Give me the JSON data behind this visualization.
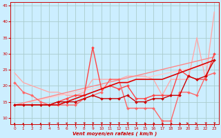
{
  "xlabel": "Vent moyen/en rafales ( km/h )",
  "background_color": "#cceeff",
  "grid_color": "#aacccc",
  "xlim": [
    -0.5,
    23.5
  ],
  "ylim": [
    8,
    46
  ],
  "yticks": [
    10,
    15,
    20,
    25,
    30,
    35,
    40,
    45
  ],
  "xticks": [
    0,
    1,
    2,
    3,
    4,
    5,
    6,
    7,
    8,
    9,
    10,
    11,
    12,
    13,
    14,
    15,
    16,
    17,
    18,
    19,
    20,
    21,
    22,
    23
  ],
  "lines": [
    {
      "x": [
        0,
        1,
        2,
        3,
        4,
        5,
        6,
        7,
        8,
        9,
        10,
        11,
        12,
        13,
        14,
        15,
        16,
        17,
        18,
        19,
        20,
        21,
        22,
        23
      ],
      "y": [
        24,
        21,
        20,
        19,
        18,
        18,
        17,
        17,
        18,
        22,
        22,
        22,
        22,
        23,
        23,
        23,
        22,
        17,
        22,
        22,
        22,
        35,
        22,
        43
      ],
      "color": "#ffaaaa",
      "lw": 1.0,
      "marker": null,
      "zorder": 2
    },
    {
      "x": [
        0,
        23
      ],
      "y": [
        14,
        27
      ],
      "color": "#ffcccc",
      "lw": 1.0,
      "marker": null,
      "zorder": 2
    },
    {
      "x": [
        0,
        23
      ],
      "y": [
        14,
        29
      ],
      "color": "#ff8888",
      "lw": 1.0,
      "marker": null,
      "zorder": 2
    },
    {
      "x": [
        0,
        1,
        2,
        3,
        4,
        5,
        6,
        7,
        8,
        9,
        10,
        11,
        12,
        13,
        14,
        15,
        16,
        17,
        18,
        19,
        20,
        21,
        22,
        23
      ],
      "y": [
        14,
        14,
        14,
        14,
        14,
        15,
        16,
        17,
        17,
        32,
        19,
        20,
        19,
        20,
        16,
        16,
        17,
        17,
        17,
        25,
        23,
        22,
        22,
        30
      ],
      "color": "#ff4444",
      "lw": 1.0,
      "marker": "D",
      "markersize": 2.0,
      "zorder": 3
    },
    {
      "x": [
        0,
        1,
        2,
        3,
        4,
        5,
        6,
        7,
        8,
        9,
        10,
        11,
        12,
        13,
        14,
        15,
        16,
        17,
        18,
        19,
        20,
        21,
        22,
        23
      ],
      "y": [
        21,
        18,
        17,
        15,
        14,
        14,
        14,
        14,
        16,
        17,
        18,
        22,
        22,
        13,
        13,
        13,
        13,
        9,
        9,
        18,
        18,
        17,
        23,
        24
      ],
      "color": "#ff6666",
      "lw": 1.0,
      "marker": "D",
      "markersize": 2.0,
      "zorder": 3
    },
    {
      "x": [
        0,
        1,
        2,
        3,
        4,
        5,
        6,
        7,
        8,
        9,
        10,
        11,
        12,
        13,
        14,
        15,
        16,
        17,
        18,
        19,
        20,
        21,
        22,
        23
      ],
      "y": [
        14,
        14,
        14,
        14,
        14,
        15,
        15,
        15,
        16,
        17,
        16,
        16,
        16,
        17,
        15,
        15,
        16,
        16,
        17,
        17,
        23,
        22,
        23,
        28
      ],
      "color": "#cc0000",
      "lw": 1.0,
      "marker": "D",
      "markersize": 2.0,
      "zorder": 4
    },
    {
      "x": [
        0,
        1,
        2,
        3,
        4,
        5,
        6,
        7,
        8,
        9,
        10,
        11,
        12,
        13,
        14,
        15,
        16,
        17,
        18,
        19,
        20,
        21,
        22,
        23
      ],
      "y": [
        14,
        14,
        14,
        14,
        14,
        14,
        15,
        16,
        17,
        18,
        19,
        20,
        21,
        21,
        22,
        22,
        22,
        22,
        23,
        24,
        25,
        26,
        27,
        28
      ],
      "color": "#dd0000",
      "lw": 1.2,
      "marker": null,
      "zorder": 3
    }
  ],
  "arrow_directions": [
    0,
    0,
    0,
    0,
    30,
    30,
    30,
    45,
    45,
    45,
    45,
    45,
    45,
    45,
    45,
    135,
    135,
    135,
    135,
    135,
    90,
    90,
    45,
    45
  ]
}
